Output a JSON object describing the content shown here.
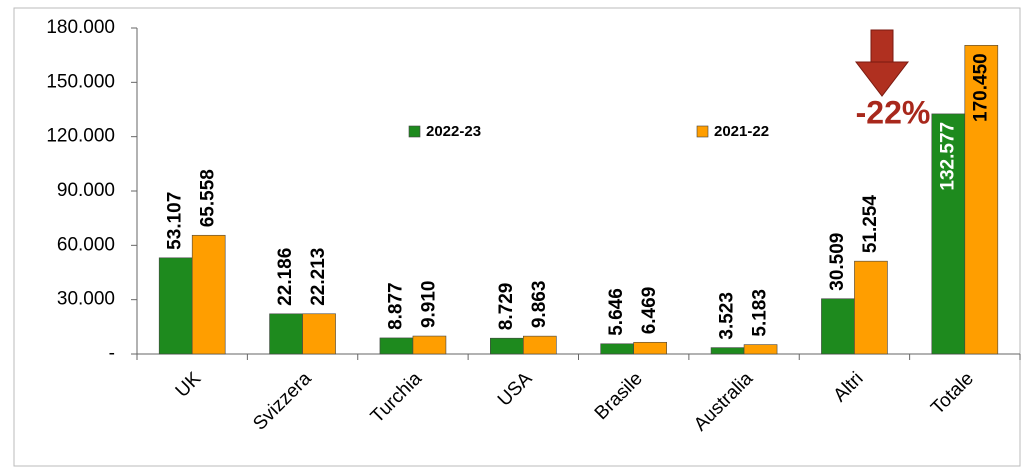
{
  "chart_data": {
    "type": "bar",
    "categories": [
      "UK",
      "Svizzera",
      "Turchia",
      "USA",
      "Brasile",
      "Australia",
      "Altri",
      "Totale"
    ],
    "series": [
      {
        "name": "2022-23",
        "color": "#1e8a1e",
        "values": [
          53107,
          22186,
          8877,
          8729,
          5646,
          3523,
          30509,
          132577
        ],
        "value_labels": [
          "53.107",
          "22.186",
          "8.877",
          "8.729",
          "5.646",
          "3.523",
          "30.509",
          "132.577"
        ]
      },
      {
        "name": "2021-22",
        "color": "#ff9e00",
        "values": [
          65558,
          22213,
          9910,
          9863,
          6469,
          5183,
          51254,
          170450
        ],
        "value_labels": [
          "65.558",
          "22.213",
          "9.910",
          "9.863",
          "6.469",
          "5.183",
          "51.254",
          "170.450"
        ]
      }
    ],
    "ylim": [
      0,
      180000
    ],
    "yticks": [
      {
        "value": 0,
        "label": "-"
      },
      {
        "value": 30000,
        "label": "30.000"
      },
      {
        "value": 60000,
        "label": "60.000"
      },
      {
        "value": 90000,
        "label": "90.000"
      },
      {
        "value": 120000,
        "label": "120.000"
      },
      {
        "value": 150000,
        "label": "150.000"
      },
      {
        "value": 180000,
        "label": "180.000"
      }
    ],
    "annotation": "-22%"
  }
}
